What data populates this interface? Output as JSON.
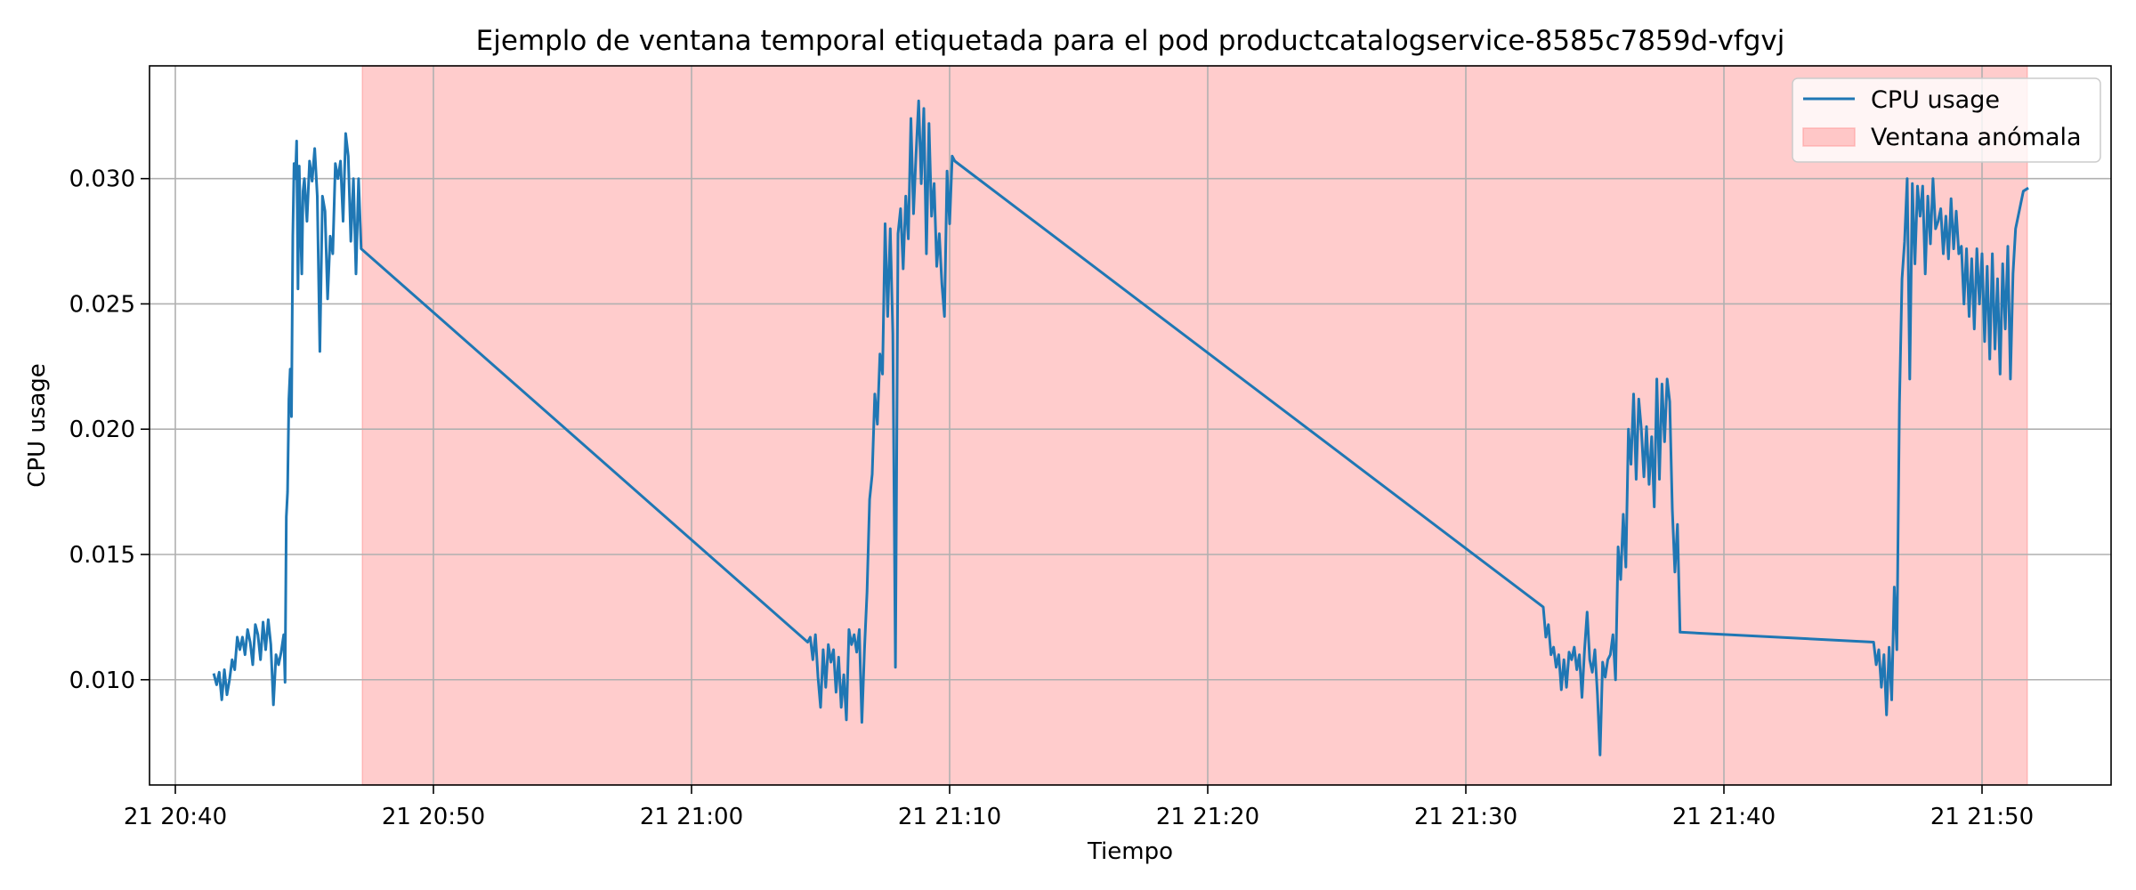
{
  "chart_data": {
    "type": "line",
    "title": "Ejemplo de ventana temporal etiquetada para el pod productcatalogservice-8585c7859d-vfgvj",
    "xlabel": "Tiempo",
    "ylabel": "CPU usage",
    "x_tick_labels": [
      "21 20:40",
      "21 20:50",
      "21 21:00",
      "21 21:10",
      "21 21:20",
      "21 21:30",
      "21 21:40",
      "21 21:50"
    ],
    "y_tick_labels": [
      "0.010",
      "0.015",
      "0.020",
      "0.025",
      "0.030"
    ],
    "xlim": [
      "21 20:39",
      "21 21:55"
    ],
    "ylim": [
      0.0058,
      0.0345
    ],
    "grid": true,
    "legend_position": "top-right",
    "colors": {
      "line": "#1f77b4",
      "shade": "#ff9999"
    },
    "shaded_window": {
      "name": "Ventana anómala",
      "start": "21 20:47:15",
      "end": "21 21:51:45"
    },
    "series": [
      {
        "name": "CPU usage",
        "points": [
          [
            "21 20:41:30",
            0.0102
          ],
          [
            "21 20:41:36",
            0.0098
          ],
          [
            "21 20:41:42",
            0.0103
          ],
          [
            "21 20:41:48",
            0.0092
          ],
          [
            "21 20:41:54",
            0.0104
          ],
          [
            "21 20:42:00",
            0.0094
          ],
          [
            "21 20:42:06",
            0.01
          ],
          [
            "21 20:42:12",
            0.0108
          ],
          [
            "21 20:42:18",
            0.0104
          ],
          [
            "21 20:42:24",
            0.0117
          ],
          [
            "21 20:42:30",
            0.0112
          ],
          [
            "21 20:42:36",
            0.0117
          ],
          [
            "21 20:42:42",
            0.011
          ],
          [
            "21 20:42:48",
            0.012
          ],
          [
            "21 20:42:54",
            0.0115
          ],
          [
            "21 20:43:00",
            0.0106
          ],
          [
            "21 20:43:06",
            0.0122
          ],
          [
            "21 20:43:12",
            0.0118
          ],
          [
            "21 20:43:18",
            0.0108
          ],
          [
            "21 20:43:24",
            0.0123
          ],
          [
            "21 20:43:30",
            0.0112
          ],
          [
            "21 20:43:36",
            0.0124
          ],
          [
            "21 20:43:42",
            0.0114
          ],
          [
            "21 20:43:48",
            0.009
          ],
          [
            "21 20:43:54",
            0.011
          ],
          [
            "21 20:44:00",
            0.0106
          ],
          [
            "21 20:44:06",
            0.0111
          ],
          [
            "21 20:44:12",
            0.0118
          ],
          [
            "21 20:44:15",
            0.0099
          ],
          [
            "21 20:44:18",
            0.0165
          ],
          [
            "21 20:44:21",
            0.0175
          ],
          [
            "21 20:44:24",
            0.0212
          ],
          [
            "21 20:44:27",
            0.0224
          ],
          [
            "21 20:44:30",
            0.0205
          ],
          [
            "21 20:44:33",
            0.0277
          ],
          [
            "21 20:44:36",
            0.0306
          ],
          [
            "21 20:44:39",
            0.03
          ],
          [
            "21 20:44:42",
            0.0315
          ],
          [
            "21 20:44:45",
            0.0256
          ],
          [
            "21 20:44:48",
            0.0305
          ],
          [
            "21 20:44:51",
            0.0282
          ],
          [
            "21 20:44:54",
            0.0262
          ],
          [
            "21 20:44:57",
            0.0295
          ],
          [
            "21 20:45:00",
            0.03
          ],
          [
            "21 20:45:06",
            0.0283
          ],
          [
            "21 20:45:12",
            0.0307
          ],
          [
            "21 20:45:18",
            0.0299
          ],
          [
            "21 20:45:24",
            0.0312
          ],
          [
            "21 20:45:30",
            0.0293
          ],
          [
            "21 20:45:36",
            0.0231
          ],
          [
            "21 20:45:42",
            0.0293
          ],
          [
            "21 20:45:48",
            0.0287
          ],
          [
            "21 20:45:54",
            0.0252
          ],
          [
            "21 20:46:00",
            0.0277
          ],
          [
            "21 20:46:06",
            0.027
          ],
          [
            "21 20:46:12",
            0.0306
          ],
          [
            "21 20:46:18",
            0.03
          ],
          [
            "21 20:46:24",
            0.0307
          ],
          [
            "21 20:46:30",
            0.0283
          ],
          [
            "21 20:46:36",
            0.0318
          ],
          [
            "21 20:46:42",
            0.0309
          ],
          [
            "21 20:46:48",
            0.0275
          ],
          [
            "21 20:46:54",
            0.03
          ],
          [
            "21 20:47:00",
            0.0262
          ],
          [
            "21 20:47:06",
            0.03
          ],
          [
            "21 20:47:12",
            0.0272
          ],
          [
            "21 21:04:30",
            0.0115
          ],
          [
            "21 21:04:36",
            0.0117
          ],
          [
            "21 21:04:42",
            0.0108
          ],
          [
            "21 21:04:48",
            0.0118
          ],
          [
            "21 21:04:54",
            0.0101
          ],
          [
            "21 21:05:00",
            0.0089
          ],
          [
            "21 21:05:06",
            0.0112
          ],
          [
            "21 21:05:12",
            0.0097
          ],
          [
            "21 21:05:18",
            0.0114
          ],
          [
            "21 21:05:24",
            0.0107
          ],
          [
            "21 21:05:30",
            0.0112
          ],
          [
            "21 21:05:36",
            0.0095
          ],
          [
            "21 21:05:42",
            0.0109
          ],
          [
            "21 21:05:48",
            0.0089
          ],
          [
            "21 21:05:54",
            0.0102
          ],
          [
            "21 21:06:00",
            0.0084
          ],
          [
            "21 21:06:06",
            0.012
          ],
          [
            "21 21:06:12",
            0.0114
          ],
          [
            "21 21:06:18",
            0.0118
          ],
          [
            "21 21:06:24",
            0.0111
          ],
          [
            "21 21:06:30",
            0.012
          ],
          [
            "21 21:06:36",
            0.0083
          ],
          [
            "21 21:06:42",
            0.0112
          ],
          [
            "21 21:06:48",
            0.0135
          ],
          [
            "21 21:06:54",
            0.0172
          ],
          [
            "21 21:07:00",
            0.0182
          ],
          [
            "21 21:07:06",
            0.0214
          ],
          [
            "21 21:07:12",
            0.0202
          ],
          [
            "21 21:07:18",
            0.023
          ],
          [
            "21 21:07:24",
            0.0222
          ],
          [
            "21 21:07:30",
            0.0282
          ],
          [
            "21 21:07:36",
            0.0245
          ],
          [
            "21 21:07:42",
            0.028
          ],
          [
            "21 21:07:48",
            0.0238
          ],
          [
            "21 21:07:54",
            0.0105
          ],
          [
            "21 21:08:00",
            0.0278
          ],
          [
            "21 21:08:06",
            0.0288
          ],
          [
            "21 21:08:12",
            0.0264
          ],
          [
            "21 21:08:18",
            0.0293
          ],
          [
            "21 21:08:24",
            0.0276
          ],
          [
            "21 21:08:30",
            0.0324
          ],
          [
            "21 21:08:36",
            0.0286
          ],
          [
            "21 21:08:42",
            0.031
          ],
          [
            "21 21:08:48",
            0.0331
          ],
          [
            "21 21:08:54",
            0.0298
          ],
          [
            "21 21:09:00",
            0.0328
          ],
          [
            "21 21:09:06",
            0.027
          ],
          [
            "21 21:09:12",
            0.0322
          ],
          [
            "21 21:09:18",
            0.0285
          ],
          [
            "21 21:09:24",
            0.0298
          ],
          [
            "21 21:09:30",
            0.0265
          ],
          [
            "21 21:09:36",
            0.0278
          ],
          [
            "21 21:09:42",
            0.0258
          ],
          [
            "21 21:09:48",
            0.0245
          ],
          [
            "21 21:09:54",
            0.0303
          ],
          [
            "21 21:10:00",
            0.0282
          ],
          [
            "21 21:10:06",
            0.0309
          ],
          [
            "21 21:10:12",
            0.0307
          ],
          [
            "21 21:33:00",
            0.0129
          ],
          [
            "21 21:33:06",
            0.0117
          ],
          [
            "21 21:33:12",
            0.0122
          ],
          [
            "21 21:33:18",
            0.011
          ],
          [
            "21 21:33:24",
            0.0113
          ],
          [
            "21 21:33:30",
            0.0105
          ],
          [
            "21 21:33:36",
            0.011
          ],
          [
            "21 21:33:42",
            0.0096
          ],
          [
            "21 21:33:48",
            0.0108
          ],
          [
            "21 21:33:54",
            0.0097
          ],
          [
            "21 21:34:00",
            0.0111
          ],
          [
            "21 21:34:06",
            0.0108
          ],
          [
            "21 21:34:12",
            0.0113
          ],
          [
            "21 21:34:18",
            0.0104
          ],
          [
            "21 21:34:24",
            0.011
          ],
          [
            "21 21:34:30",
            0.0093
          ],
          [
            "21 21:34:36",
            0.0112
          ],
          [
            "21 21:34:42",
            0.0127
          ],
          [
            "21 21:34:48",
            0.0108
          ],
          [
            "21 21:34:54",
            0.0103
          ],
          [
            "21 21:35:00",
            0.0112
          ],
          [
            "21 21:35:06",
            0.0094
          ],
          [
            "21 21:35:12",
            0.007
          ],
          [
            "21 21:35:18",
            0.0107
          ],
          [
            "21 21:35:24",
            0.0101
          ],
          [
            "21 21:35:30",
            0.0108
          ],
          [
            "21 21:35:36",
            0.011
          ],
          [
            "21 21:35:42",
            0.0118
          ],
          [
            "21 21:35:48",
            0.01
          ],
          [
            "21 21:35:54",
            0.0153
          ],
          [
            "21 21:36:00",
            0.014
          ],
          [
            "21 21:36:06",
            0.0166
          ],
          [
            "21 21:36:12",
            0.0145
          ],
          [
            "21 21:36:18",
            0.02
          ],
          [
            "21 21:36:24",
            0.0186
          ],
          [
            "21 21:36:30",
            0.0214
          ],
          [
            "21 21:36:36",
            0.018
          ],
          [
            "21 21:36:42",
            0.0212
          ],
          [
            "21 21:36:48",
            0.02
          ],
          [
            "21 21:36:54",
            0.0181
          ],
          [
            "21 21:37:00",
            0.0201
          ],
          [
            "21 21:37:06",
            0.0178
          ],
          [
            "21 21:37:12",
            0.0197
          ],
          [
            "21 21:37:18",
            0.0169
          ],
          [
            "21 21:37:24",
            0.022
          ],
          [
            "21 21:37:30",
            0.018
          ],
          [
            "21 21:37:36",
            0.0218
          ],
          [
            "21 21:37:42",
            0.0195
          ],
          [
            "21 21:37:48",
            0.022
          ],
          [
            "21 21:37:54",
            0.0211
          ],
          [
            "21 21:38:00",
            0.0168
          ],
          [
            "21 21:38:06",
            0.0143
          ],
          [
            "21 21:38:12",
            0.0162
          ],
          [
            "21 21:38:18",
            0.0119
          ],
          [
            "21 21:45:48",
            0.0115
          ],
          [
            "21 21:45:54",
            0.0106
          ],
          [
            "21 21:46:00",
            0.0112
          ],
          [
            "21 21:46:06",
            0.0097
          ],
          [
            "21 21:46:12",
            0.011
          ],
          [
            "21 21:46:18",
            0.0086
          ],
          [
            "21 21:46:24",
            0.0113
          ],
          [
            "21 21:46:30",
            0.0092
          ],
          [
            "21 21:46:36",
            0.0137
          ],
          [
            "21 21:46:42",
            0.0112
          ],
          [
            "21 21:46:48",
            0.021
          ],
          [
            "21 21:46:54",
            0.026
          ],
          [
            "21 21:47:00",
            0.0275
          ],
          [
            "21 21:47:06",
            0.03
          ],
          [
            "21 21:47:12",
            0.022
          ],
          [
            "21 21:47:18",
            0.0298
          ],
          [
            "21 21:47:24",
            0.0266
          ],
          [
            "21 21:47:30",
            0.0297
          ],
          [
            "21 21:47:36",
            0.0285
          ],
          [
            "21 21:47:42",
            0.0297
          ],
          [
            "21 21:47:48",
            0.0262
          ],
          [
            "21 21:47:54",
            0.0293
          ],
          [
            "21 21:48:00",
            0.0274
          ],
          [
            "21 21:48:06",
            0.03
          ],
          [
            "21 21:48:12",
            0.028
          ],
          [
            "21 21:48:18",
            0.0283
          ],
          [
            "21 21:48:24",
            0.0288
          ],
          [
            "21 21:48:30",
            0.027
          ],
          [
            "21 21:48:36",
            0.0285
          ],
          [
            "21 21:48:42",
            0.0268
          ],
          [
            "21 21:48:48",
            0.0292
          ],
          [
            "21 21:48:54",
            0.0272
          ],
          [
            "21 21:49:00",
            0.0287
          ],
          [
            "21 21:49:06",
            0.027
          ],
          [
            "21 21:49:12",
            0.0273
          ],
          [
            "21 21:49:18",
            0.025
          ],
          [
            "21 21:49:24",
            0.0272
          ],
          [
            "21 21:49:30",
            0.0245
          ],
          [
            "21 21:49:36",
            0.0268
          ],
          [
            "21 21:49:42",
            0.024
          ],
          [
            "21 21:49:48",
            0.0272
          ],
          [
            "21 21:49:54",
            0.025
          ],
          [
            "21 21:50:00",
            0.027
          ],
          [
            "21 21:50:06",
            0.0235
          ],
          [
            "21 21:50:12",
            0.0265
          ],
          [
            "21 21:50:18",
            0.0228
          ],
          [
            "21 21:50:24",
            0.027
          ],
          [
            "21 21:50:30",
            0.0232
          ],
          [
            "21 21:50:36",
            0.026
          ],
          [
            "21 21:50:42",
            0.0222
          ],
          [
            "21 21:50:48",
            0.0266
          ],
          [
            "21 21:50:54",
            0.024
          ],
          [
            "21 21:51:00",
            0.0273
          ],
          [
            "21 21:51:06",
            0.022
          ],
          [
            "21 21:51:12",
            0.0262
          ],
          [
            "21 21:51:18",
            0.028
          ],
          [
            "21 21:51:24",
            0.0285
          ],
          [
            "21 21:51:30",
            0.029
          ],
          [
            "21 21:51:36",
            0.0295
          ],
          [
            "21 21:51:45",
            0.0296
          ]
        ]
      }
    ]
  }
}
